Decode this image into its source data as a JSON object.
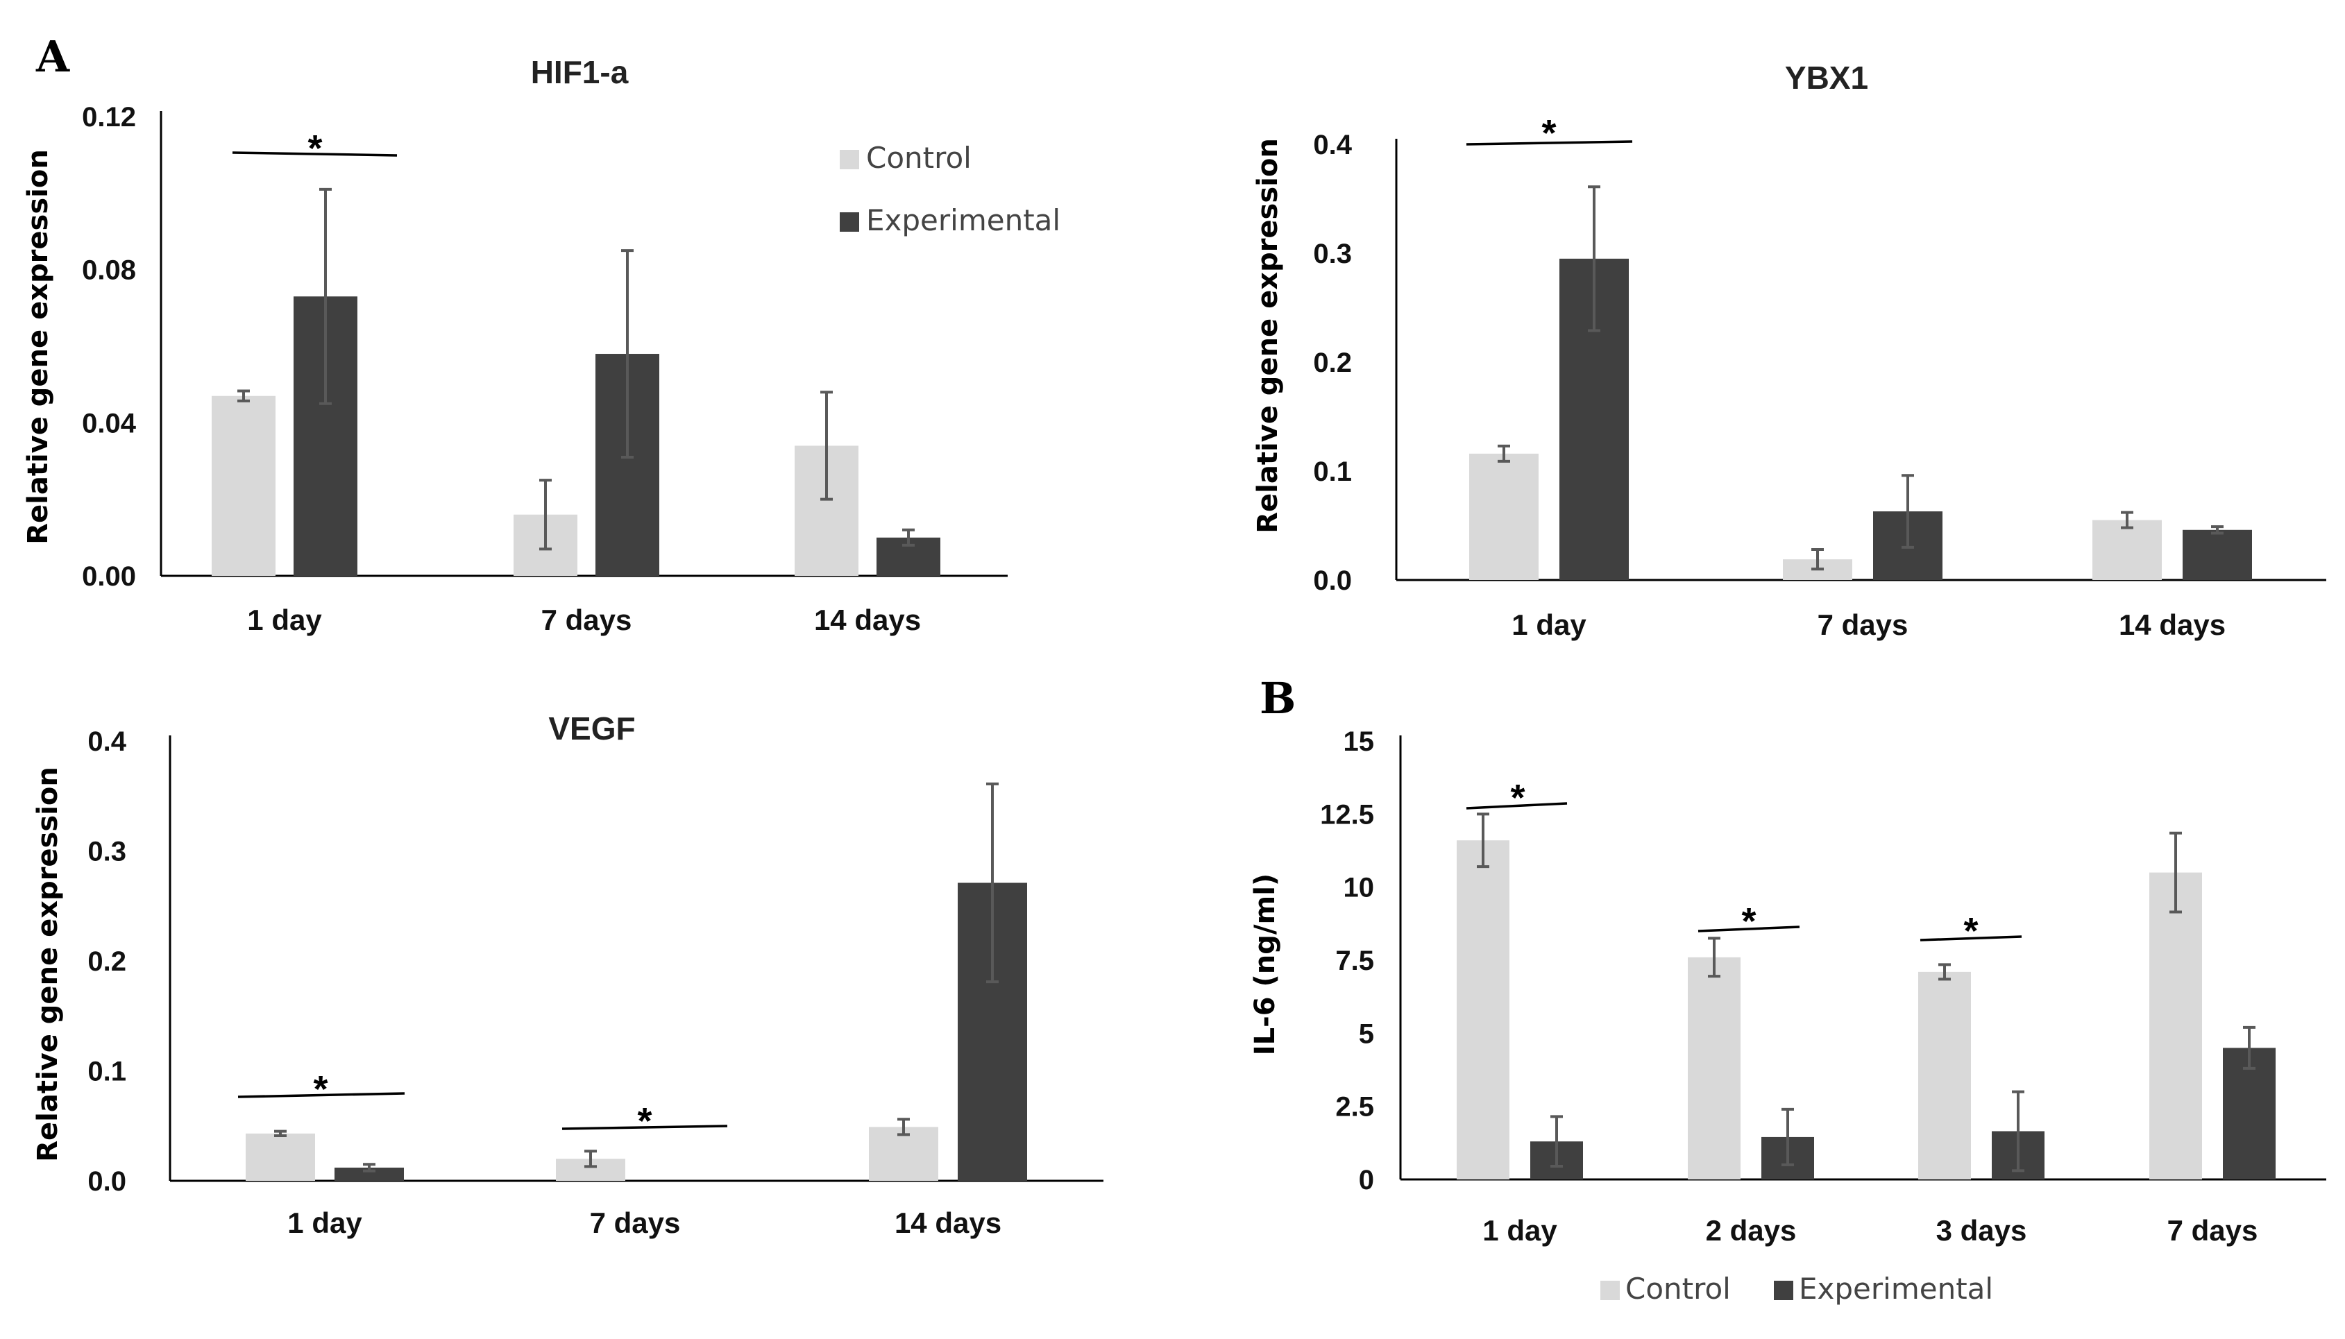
{
  "panel_labels": {
    "a": "A",
    "b": "B"
  },
  "colors": {
    "control": "#d9d9d9",
    "experimental": "#404040",
    "axis": "#000000",
    "error": "#595959"
  },
  "legend": {
    "control": "Control",
    "experimental": "Experimental"
  },
  "significance_marker": "*",
  "chart_data": [
    {
      "type": "bar",
      "title": "HIF1-a",
      "ylabel": "Relative gene expression",
      "xlabel": "",
      "ylim": [
        0,
        0.12
      ],
      "yticks": [
        "0.00",
        "0.04",
        "0.08",
        "0.12"
      ],
      "categories": [
        "1  day",
        "7 days",
        "14 days"
      ],
      "series": [
        {
          "name": "Control",
          "values": [
            0.047,
            0.016,
            0.034
          ],
          "errors": [
            0.0013,
            0.009,
            0.014
          ]
        },
        {
          "name": "Experimental",
          "values": [
            0.073,
            0.058,
            0.01
          ],
          "errors": [
            0.028,
            0.027,
            0.002
          ]
        }
      ],
      "significant": [
        0
      ],
      "legend_position": "top-right"
    },
    {
      "type": "bar",
      "title": "YBX1",
      "ylabel": "Relative gene expression",
      "xlabel": "",
      "ylim": [
        0,
        0.4
      ],
      "yticks": [
        "0.0",
        "0.1",
        "0.2",
        "0.3",
        "0.4"
      ],
      "categories": [
        "1 day",
        "7 days",
        "14 days"
      ],
      "series": [
        {
          "name": "Control",
          "values": [
            0.116,
            0.019,
            0.055
          ],
          "errors": [
            0.007,
            0.009,
            0.007
          ]
        },
        {
          "name": "Experimental",
          "values": [
            0.295,
            0.063,
            0.046
          ],
          "errors": [
            0.066,
            0.033,
            0.003
          ]
        }
      ],
      "significant": [
        0
      ],
      "legend_position": "none"
    },
    {
      "type": "bar",
      "title": "VEGF",
      "ylabel": "Relative gene expression",
      "xlabel": "",
      "ylim": [
        0,
        0.4
      ],
      "yticks": [
        "0.0",
        "0.1",
        "0.2",
        "0.3",
        "0.4"
      ],
      "categories": [
        "1 day",
        "7 days",
        "14 days"
      ],
      "series": [
        {
          "name": "Control",
          "values": [
            0.043,
            0.02,
            0.049
          ],
          "errors": [
            0.002,
            0.007,
            0.007
          ]
        },
        {
          "name": "Experimental",
          "values": [
            0.012,
            0.0,
            0.271
          ],
          "errors": [
            0.003,
            0.0,
            0.09
          ]
        }
      ],
      "significant": [
        0,
        1
      ],
      "legend_position": "none"
    },
    {
      "type": "bar",
      "title": "",
      "ylabel": "IL-6 (ng/ml)",
      "xlabel": "",
      "ylim": [
        0,
        15
      ],
      "yticks": [
        "0",
        "2.5",
        "5",
        "7.5",
        "10",
        "12.5",
        "15"
      ],
      "categories": [
        "1 day",
        "2 days",
        "3 days",
        "7 days"
      ],
      "series": [
        {
          "name": "Control",
          "values": [
            11.6,
            7.6,
            7.1,
            10.5
          ],
          "errors": [
            0.9,
            0.65,
            0.25,
            1.35
          ]
        },
        {
          "name": "Experimental",
          "values": [
            1.3,
            1.45,
            1.65,
            4.5
          ],
          "errors": [
            0.85,
            0.95,
            1.35,
            0.7
          ]
        }
      ],
      "significant": [
        0,
        1,
        2
      ],
      "legend_position": "bottom"
    }
  ]
}
